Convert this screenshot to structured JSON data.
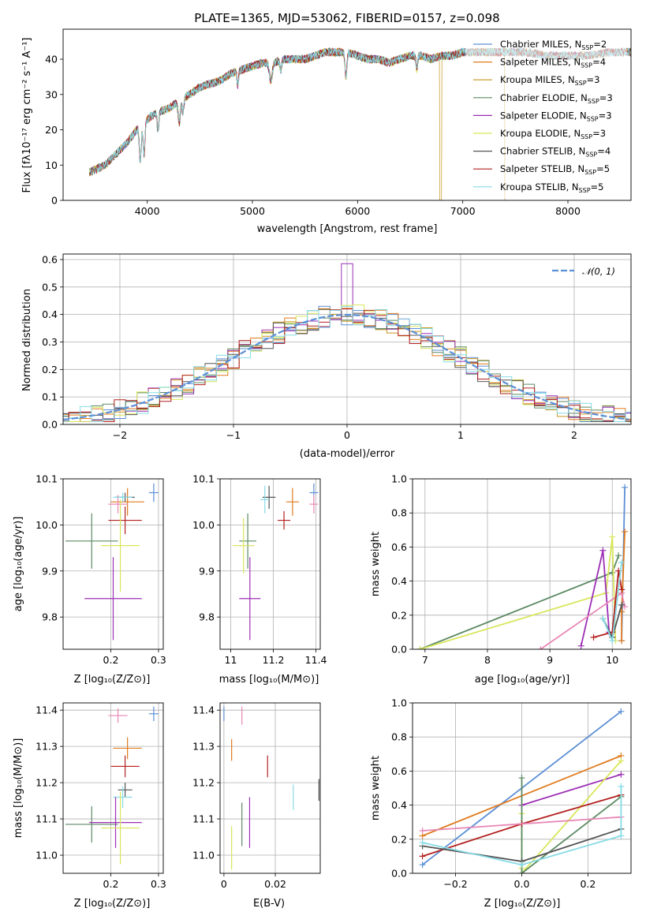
{
  "title": "PLATE=1365, MJD=53062, FIBERID=0157, z=0.098",
  "panels": {
    "spectrum": {
      "xlabel": "wavelength [Angstrom, rest frame]",
      "ylabel": "Flux [fλ10⁻¹⁷ erg cm⁻² s⁻¹ A⁻¹]"
    },
    "hist": {
      "xlabel": "(data-model)/error",
      "ylabel": "Normed distribution",
      "legend": "𝒩(0, 1)"
    },
    "age_z": {
      "xlabel": "Z [log₁₀(Z/Z⊙)]",
      "ylabel": "age  [log₁₀(age/yr)]"
    },
    "age_mass": {
      "xlabel": "mass [log₁₀(M/M⊙)]"
    },
    "mw_age": {
      "xlabel": "age  [log₁₀(age/yr)]",
      "ylabel": "mass weight"
    },
    "mass_z": {
      "xlabel": "Z [log₁₀(Z/Z⊙)]",
      "ylabel": "mass [log₁₀(M/M⊙)]"
    },
    "mass_ebv": {
      "xlabel": "E(B-V)"
    },
    "mw_z": {
      "xlabel": "Z [log₁₀(Z/Z⊙)]",
      "ylabel": "mass weight"
    }
  },
  "chart_data": [
    {
      "type": "line",
      "id": "spectrum",
      "xlabel": "wavelength [Angstrom, rest frame]",
      "ylabel": "Flux [fλ10⁻¹⁷ erg cm⁻² s⁻¹ A⁻¹]",
      "xlim": [
        3200,
        8600
      ],
      "ylim": [
        0,
        48.5
      ],
      "xticks": [
        4000,
        5000,
        6000,
        7000,
        8000
      ],
      "yticks": [
        0,
        10,
        20,
        30,
        40
      ],
      "continuum_x": [
        3450,
        3600,
        3700,
        3800,
        3900,
        4000,
        4100,
        4200,
        4300,
        4400,
        4500,
        4600,
        4700,
        4800,
        4900,
        5000,
        5100,
        5200,
        5300,
        5400,
        5500,
        5600,
        5700,
        5800,
        5900,
        6000,
        6100,
        6200,
        6300,
        6400,
        6500,
        6600,
        6700,
        6800,
        6900,
        7000,
        7200,
        7400,
        7600,
        7800,
        8000,
        8200,
        8400
      ],
      "continuum_y": [
        8,
        10,
        13,
        16,
        20,
        23,
        25,
        26,
        28,
        30,
        32,
        33,
        34,
        36,
        37,
        38,
        39,
        39,
        40,
        40,
        40,
        41,
        42,
        42,
        42,
        41,
        40,
        40,
        39,
        40,
        41,
        41,
        40,
        41,
        41,
        42,
        42,
        42,
        42,
        41,
        41,
        41,
        42
      ],
      "series": [
        {
          "name": "Chabrier MILES, Nₛₛₚ=2",
          "color": "#5b8fd6"
        },
        {
          "name": "Salpeter MILES, Nₛₛₚ=4",
          "color": "#e07b1f"
        },
        {
          "name": "Kroupa MILES, Nₛₛₚ=3",
          "color": "#c8961e"
        },
        {
          "name": "Chabrier ELODIE, Nₛₛₚ=3",
          "color": "#5d8a63"
        },
        {
          "name": "Salpeter ELODIE, Nₛₛₚ=3",
          "color": "#9c2fb5"
        },
        {
          "name": "Kroupa ELODIE, Nₛₛₚ=3",
          "color": "#d9e65c"
        },
        {
          "name": "Chabrier STELIB, Nₛₛₚ=4",
          "color": "#555555"
        },
        {
          "name": "Salpeter STELIB, Nₛₛₚ=5",
          "color": "#b3201f"
        },
        {
          "name": "Kroupa STELIB, Nₛₛₚ=5",
          "color": "#86dbe6"
        }
      ],
      "legend_labels": [
        {
          "pre": "Chabrier MILES, N",
          "sub": "SSP",
          "post": "=2"
        },
        {
          "pre": "Salpeter MILES, N",
          "sub": "SSP",
          "post": "=4"
        },
        {
          "pre": "Kroupa MILES, N",
          "sub": "SSP",
          "post": "=3"
        },
        {
          "pre": "Chabrier ELODIE, N",
          "sub": "SSP",
          "post": "=3"
        },
        {
          "pre": "Salpeter ELODIE, N",
          "sub": "SSP",
          "post": "=3"
        },
        {
          "pre": "Kroupa ELODIE, N",
          "sub": "SSP",
          "post": "=3"
        },
        {
          "pre": "Chabrier STELIB, N",
          "sub": "SSP",
          "post": "=4"
        },
        {
          "pre": "Salpeter STELIB, N",
          "sub": "SSP",
          "post": "=5"
        },
        {
          "pre": "Kroupa STELIB, N",
          "sub": "SSP",
          "post": "=5"
        }
      ]
    },
    {
      "type": "line",
      "id": "hist",
      "xlabel": "(data-model)/error",
      "ylabel": "Normed distribution",
      "xlim": [
        -2.5,
        2.5
      ],
      "ylim": [
        0,
        0.62
      ],
      "xticks": [
        -2,
        -1,
        0,
        1,
        2
      ],
      "xtick_labels": [
        "−2",
        "−1",
        "0",
        "1",
        "2"
      ],
      "yticks": [
        0.0,
        0.1,
        0.2,
        0.3,
        0.4,
        0.5,
        0.6
      ],
      "bin_width": 0.1,
      "reference": {
        "name": "𝒩(0, 1)",
        "mean": 0,
        "sigma": 1,
        "color": "#5b8fd6"
      }
    },
    {
      "type": "scatter",
      "id": "age_z",
      "xlabel": "Z [log₁₀(Z/Z⊙)]",
      "ylabel": "age  [log₁₀(age/yr)]",
      "xlim": [
        0.1,
        0.31
      ],
      "ylim": [
        9.73,
        10.1
      ],
      "xticks": [
        0.2,
        0.3
      ],
      "yticks": [
        9.8,
        9.9,
        10.0,
        10.1
      ],
      "points": [
        {
          "x": 0.29,
          "y": 10.07,
          "ex": 0.01,
          "ey": 0.02,
          "color": "#5b8fd6"
        },
        {
          "x": 0.235,
          "y": 10.05,
          "ex": 0.035,
          "ey": 0.03,
          "color": "#e07b1f"
        },
        {
          "x": 0.215,
          "y": 10.045,
          "ex": 0.02,
          "ey": 0.02,
          "color": "#e887b5"
        },
        {
          "x": 0.23,
          "y": 10.06,
          "ex": 0.02,
          "ey": 0.01,
          "color": "#555555"
        },
        {
          "x": 0.225,
          "y": 10.06,
          "ex": 0.02,
          "ey": 0.01,
          "color": "#86dbe6"
        },
        {
          "x": 0.23,
          "y": 10.01,
          "ex": 0.035,
          "ey": 0.03,
          "color": "#b3201f"
        },
        {
          "x": 0.16,
          "y": 9.965,
          "ex": 0.055,
          "ey": 0.06,
          "color": "#5d8a63"
        },
        {
          "x": 0.22,
          "y": 9.955,
          "ex": 0.04,
          "ey": 0.1,
          "color": "#d9e65c"
        },
        {
          "x": 0.205,
          "y": 9.84,
          "ex": 0.06,
          "ey": 0.09,
          "color": "#9c2fb5"
        }
      ]
    },
    {
      "type": "scatter",
      "id": "age_mass",
      "xlabel": "mass [log₁₀(M/M⊙)]",
      "xlim": [
        10.95,
        11.42
      ],
      "ylim": [
        9.73,
        10.1
      ],
      "xticks": [
        11.0,
        11.2,
        11.4
      ],
      "yticks": [
        9.8,
        9.9,
        10.0,
        10.1
      ],
      "points": [
        {
          "x": 11.39,
          "y": 10.07,
          "ex": 0.02,
          "ey": 0.02,
          "color": "#5b8fd6"
        },
        {
          "x": 11.29,
          "y": 10.05,
          "ex": 0.03,
          "ey": 0.03,
          "color": "#e07b1f"
        },
        {
          "x": 11.39,
          "y": 10.045,
          "ex": 0.02,
          "ey": 0.02,
          "color": "#e887b5"
        },
        {
          "x": 11.18,
          "y": 10.06,
          "ex": 0.03,
          "ey": 0.025,
          "color": "#555555"
        },
        {
          "x": 11.16,
          "y": 10.055,
          "ex": 0.02,
          "ey": 0.03,
          "color": "#86dbe6"
        },
        {
          "x": 11.25,
          "y": 10.01,
          "ex": 0.03,
          "ey": 0.02,
          "color": "#b3201f"
        },
        {
          "x": 11.08,
          "y": 9.965,
          "ex": 0.04,
          "ey": 0.06,
          "color": "#5d8a63"
        },
        {
          "x": 11.06,
          "y": 9.955,
          "ex": 0.05,
          "ey": 0.06,
          "color": "#d9e65c"
        },
        {
          "x": 11.09,
          "y": 9.84,
          "ex": 0.05,
          "ey": 0.09,
          "color": "#9c2fb5"
        }
      ]
    },
    {
      "type": "line",
      "id": "mw_age",
      "xlabel": "age  [log₁₀(age/yr)]",
      "ylabel": "mass weight",
      "xlim": [
        6.8,
        10.3
      ],
      "ylim": [
        0,
        1.0
      ],
      "xticks": [
        7,
        8,
        9,
        10
      ],
      "yticks": [
        0.0,
        0.2,
        0.4,
        0.6,
        0.8,
        1.0
      ],
      "series": [
        {
          "color": "#5b8fd6",
          "points": [
            [
              10.15,
              0.05
            ],
            [
              10.2,
              0.95
            ]
          ]
        },
        {
          "color": "#e07b1f",
          "points": [
            [
              10.15,
              0.05
            ],
            [
              10.15,
              0.22
            ],
            [
              10.2,
              0.69
            ]
          ]
        },
        {
          "color": "#5d8a63",
          "points": [
            [
              6.92,
              0.0
            ],
            [
              10.0,
              0.45
            ],
            [
              10.1,
              0.55
            ]
          ]
        },
        {
          "color": "#d9e65c",
          "points": [
            [
              6.92,
              0.0
            ],
            [
              9.9,
              0.33
            ],
            [
              10.0,
              0.66
            ],
            [
              10.05,
              0.05
            ]
          ]
        },
        {
          "color": "#9c2fb5",
          "points": [
            [
              9.5,
              0.02
            ],
            [
              9.85,
              0.58
            ],
            [
              9.95,
              0.1
            ]
          ]
        },
        {
          "color": "#e887b5",
          "points": [
            [
              8.85,
              0.0
            ],
            [
              10.15,
              0.33
            ],
            [
              10.2,
              0.25
            ]
          ]
        },
        {
          "color": "#b3201f",
          "points": [
            [
              9.7,
              0.07
            ],
            [
              10.0,
              0.1
            ],
            [
              10.1,
              0.46
            ],
            [
              10.15,
              0.35
            ]
          ]
        },
        {
          "color": "#555555",
          "points": [
            [
              9.85,
              0.18
            ],
            [
              10.0,
              0.07
            ],
            [
              10.15,
              0.26
            ]
          ]
        },
        {
          "color": "#86dbe6",
          "points": [
            [
              9.85,
              0.18
            ],
            [
              10.0,
              0.05
            ],
            [
              10.15,
              0.51
            ]
          ]
        }
      ]
    },
    {
      "type": "scatter",
      "id": "mass_z",
      "xlabel": "Z [log₁₀(Z/Z⊙)]",
      "ylabel": "mass [log₁₀(M/M⊙)]",
      "xlim": [
        0.1,
        0.31
      ],
      "ylim": [
        10.95,
        11.42
      ],
      "xticks": [
        0.2,
        0.3
      ],
      "yticks": [
        11.0,
        11.1,
        11.2,
        11.3,
        11.4
      ],
      "points": [
        {
          "x": 0.29,
          "y": 11.39,
          "ex": 0.01,
          "ey": 0.02,
          "color": "#5b8fd6"
        },
        {
          "x": 0.235,
          "y": 11.295,
          "ex": 0.03,
          "ey": 0.03,
          "color": "#e07b1f"
        },
        {
          "x": 0.215,
          "y": 11.385,
          "ex": 0.02,
          "ey": 0.02,
          "color": "#e887b5"
        },
        {
          "x": 0.23,
          "y": 11.245,
          "ex": 0.03,
          "ey": 0.03,
          "color": "#b3201f"
        },
        {
          "x": 0.23,
          "y": 11.18,
          "ex": 0.015,
          "ey": 0.02,
          "color": "#555555"
        },
        {
          "x": 0.225,
          "y": 11.16,
          "ex": 0.02,
          "ey": 0.03,
          "color": "#86dbe6"
        },
        {
          "x": 0.16,
          "y": 11.085,
          "ex": 0.055,
          "ey": 0.05,
          "color": "#5d8a63"
        },
        {
          "x": 0.21,
          "y": 11.09,
          "ex": 0.055,
          "ey": 0.07,
          "color": "#9c2fb5"
        },
        {
          "x": 0.22,
          "y": 11.075,
          "ex": 0.04,
          "ey": 0.1,
          "color": "#d9e65c"
        }
      ]
    },
    {
      "type": "scatter",
      "id": "mass_ebv",
      "xlabel": "E(B-V)",
      "xlim": [
        -0.0015,
        0.0375
      ],
      "ylim": [
        10.95,
        11.42
      ],
      "xticks": [
        0.0,
        0.02
      ],
      "yticks": [
        11.0,
        11.1,
        11.2,
        11.3,
        11.4
      ],
      "points": [
        {
          "x": 0.0,
          "y": 11.39,
          "ey": 0.02,
          "color": "#5b8fd6"
        },
        {
          "x": 0.003,
          "y": 11.29,
          "ey": 0.03,
          "color": "#e07b1f"
        },
        {
          "x": 0.007,
          "y": 11.385,
          "ey": 0.025,
          "color": "#e887b5"
        },
        {
          "x": 0.017,
          "y": 11.245,
          "ey": 0.03,
          "color": "#b3201f"
        },
        {
          "x": 0.037,
          "y": 11.18,
          "ey": 0.03,
          "color": "#555555"
        },
        {
          "x": 0.027,
          "y": 11.16,
          "ey": 0.035,
          "color": "#86dbe6"
        },
        {
          "x": 0.007,
          "y": 11.085,
          "ey": 0.06,
          "color": "#5d8a63"
        },
        {
          "x": 0.01,
          "y": 11.09,
          "ey": 0.07,
          "color": "#9c2fb5"
        },
        {
          "x": 0.003,
          "y": 11.02,
          "ey": 0.06,
          "color": "#d9e65c"
        }
      ]
    },
    {
      "type": "line",
      "id": "mw_z",
      "xlabel": "Z [log₁₀(Z/Z⊙)]",
      "ylabel": "mass weight",
      "xlim": [
        -0.33,
        0.33
      ],
      "ylim": [
        0,
        1.0
      ],
      "xticks": [
        -0.2,
        0.0,
        0.2
      ],
      "xtick_labels": [
        "−0.2",
        "0.0",
        "0.2"
      ],
      "yticks": [
        0.0,
        0.2,
        0.4,
        0.6,
        0.8,
        1.0
      ],
      "series": [
        {
          "color": "#5b8fd6",
          "points": [
            [
              -0.3,
              0.05
            ],
            [
              0.3,
              0.95
            ]
          ]
        },
        {
          "color": "#e07b1f",
          "points": [
            [
              -0.3,
              0.22
            ],
            [
              0.3,
              0.69
            ]
          ]
        },
        {
          "color": "#9c2fb5",
          "points": [
            [
              0.0,
              0.4
            ],
            [
              0.3,
              0.58
            ]
          ]
        },
        {
          "color": "#d9e65c",
          "points": [
            [
              0.0,
              0.03
            ],
            [
              0.0,
              0.35
            ],
            [
              0.0,
              0.0
            ],
            [
              0.3,
              0.66
            ]
          ]
        },
        {
          "color": "#5d8a63",
          "points": [
            [
              0.0,
              0.56
            ],
            [
              0.0,
              0.0
            ],
            [
              0.3,
              0.45
            ]
          ]
        },
        {
          "color": "#b3201f",
          "points": [
            [
              -0.3,
              0.1
            ],
            [
              0.0,
              0.29
            ],
            [
              0.3,
              0.46
            ]
          ]
        },
        {
          "color": "#e887b5",
          "points": [
            [
              -0.3,
              0.25
            ],
            [
              0.3,
              0.33
            ]
          ]
        },
        {
          "color": "#555555",
          "points": [
            [
              -0.3,
              0.16
            ],
            [
              0.0,
              0.07
            ],
            [
              0.3,
              0.26
            ]
          ]
        },
        {
          "color": "#86dbe6",
          "points": [
            [
              -0.3,
              0.18
            ],
            [
              0.0,
              0.05
            ],
            [
              0.3,
              0.22
            ],
            [
              0.3,
              0.51
            ]
          ]
        }
      ]
    }
  ]
}
